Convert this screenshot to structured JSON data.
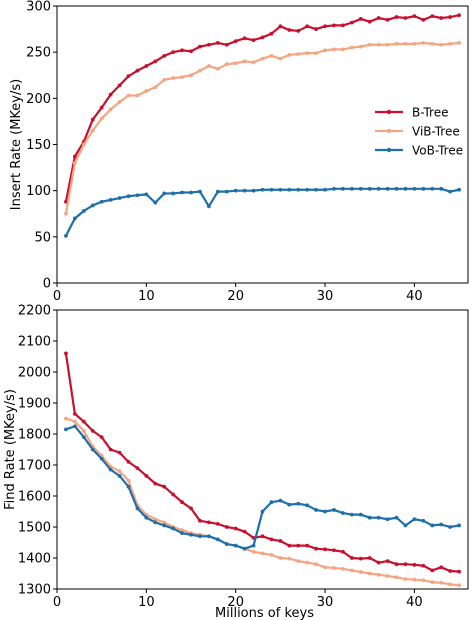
{
  "chart_data": [
    {
      "type": "line",
      "xlabel": "",
      "ylabel": "Insert Rate (MKey/s)",
      "xlim": [
        0,
        46
      ],
      "ylim": [
        0,
        300
      ],
      "xticks": [
        0,
        10,
        20,
        30,
        40
      ],
      "xtick_labels": [
        "0",
        "10",
        "20",
        "30",
        "40"
      ],
      "yticks": [
        0,
        50,
        100,
        150,
        200,
        250,
        300
      ],
      "ytick_labels": [
        "0",
        "50",
        "100",
        "150",
        "200",
        "250",
        "300"
      ],
      "legend": {
        "placement": "right"
      },
      "x": [
        1,
        2,
        3,
        4,
        5,
        6,
        7,
        8,
        9,
        10,
        11,
        12,
        13,
        14,
        15,
        16,
        17,
        18,
        19,
        20,
        21,
        22,
        23,
        24,
        25,
        26,
        27,
        28,
        29,
        30,
        31,
        32,
        33,
        34,
        35,
        36,
        37,
        38,
        39,
        40,
        41,
        42,
        43,
        44,
        45
      ],
      "series": [
        {
          "name": "B-Tree",
          "color": "#c8102e",
          "values": [
            88,
            137,
            153,
            177,
            190,
            204,
            214,
            224,
            230,
            235,
            240,
            246,
            250,
            252,
            251,
            256,
            258,
            260,
            258,
            262,
            265,
            263,
            266,
            270,
            278,
            274,
            273,
            278,
            275,
            278,
            279,
            279,
            282,
            286,
            283,
            287,
            285,
            288,
            287,
            289,
            285,
            289,
            287,
            288,
            290
          ]
        },
        {
          "name": "ViB-Tree",
          "color": "#f4a582",
          "values": [
            75,
            130,
            150,
            165,
            178,
            188,
            196,
            203,
            203,
            208,
            212,
            220,
            222,
            223,
            225,
            230,
            235,
            232,
            237,
            238,
            240,
            239,
            243,
            246,
            243,
            247,
            248,
            249,
            249,
            252,
            253,
            253,
            255,
            256,
            258,
            258,
            258,
            259,
            259,
            259,
            260,
            259,
            258,
            259,
            260
          ]
        },
        {
          "name": "VoB-Tree",
          "color": "#1f6fa8",
          "values": [
            51,
            70,
            78,
            84,
            88,
            90,
            92,
            94,
            95,
            96,
            87,
            97,
            97,
            98,
            98,
            99,
            83,
            99,
            99,
            100,
            100,
            100,
            101,
            101,
            101,
            101,
            101,
            101,
            101,
            101,
            102,
            102,
            102,
            102,
            102,
            102,
            102,
            102,
            102,
            102,
            102,
            102,
            102,
            99,
            101
          ]
        }
      ]
    },
    {
      "type": "line",
      "xlabel": "Millions of keys",
      "ylabel": "Find Rate (MKey/s)",
      "xlim": [
        0,
        46
      ],
      "ylim": [
        1300,
        2200
      ],
      "xticks": [
        0,
        10,
        20,
        30,
        40
      ],
      "xtick_labels": [
        "0",
        "10",
        "20",
        "30",
        "40"
      ],
      "yticks": [
        1300,
        1400,
        1500,
        1600,
        1700,
        1800,
        1900,
        2000,
        2100,
        2200
      ],
      "ytick_labels": [
        "1300",
        "1400",
        "1500",
        "1600",
        "1700",
        "1800",
        "1900",
        "2000",
        "2100",
        "2200"
      ],
      "x": [
        1,
        2,
        3,
        4,
        5,
        6,
        7,
        8,
        9,
        10,
        11,
        12,
        13,
        14,
        15,
        16,
        17,
        18,
        19,
        20,
        21,
        22,
        23,
        24,
        25,
        26,
        27,
        28,
        29,
        30,
        31,
        32,
        33,
        34,
        35,
        36,
        37,
        38,
        39,
        40,
        41,
        42,
        43,
        44,
        45
      ],
      "series": [
        {
          "name": "B-Tree",
          "color": "#c8102e",
          "values": [
            2060,
            1865,
            1840,
            1810,
            1790,
            1750,
            1740,
            1710,
            1690,
            1665,
            1640,
            1630,
            1605,
            1580,
            1560,
            1520,
            1515,
            1510,
            1500,
            1495,
            1485,
            1465,
            1470,
            1460,
            1455,
            1440,
            1440,
            1440,
            1430,
            1428,
            1425,
            1420,
            1400,
            1398,
            1400,
            1385,
            1390,
            1380,
            1380,
            1378,
            1375,
            1360,
            1370,
            1358,
            1356
          ]
        },
        {
          "name": "ViB-Tree",
          "color": "#f4a582",
          "values": [
            1850,
            1840,
            1810,
            1760,
            1730,
            1695,
            1680,
            1650,
            1570,
            1540,
            1525,
            1515,
            1500,
            1490,
            1480,
            1475,
            1470,
            1460,
            1445,
            1440,
            1430,
            1420,
            1415,
            1410,
            1400,
            1398,
            1390,
            1385,
            1380,
            1370,
            1368,
            1365,
            1360,
            1355,
            1350,
            1346,
            1342,
            1338,
            1332,
            1330,
            1328,
            1322,
            1320,
            1315,
            1312
          ]
        },
        {
          "name": "VoB-Tree",
          "color": "#1f6fa8",
          "values": [
            1815,
            1825,
            1790,
            1750,
            1720,
            1685,
            1665,
            1630,
            1560,
            1530,
            1515,
            1505,
            1495,
            1480,
            1475,
            1470,
            1470,
            1460,
            1445,
            1440,
            1430,
            1440,
            1550,
            1580,
            1585,
            1572,
            1575,
            1570,
            1555,
            1550,
            1555,
            1545,
            1540,
            1540,
            1530,
            1530,
            1525,
            1530,
            1505,
            1525,
            1520,
            1505,
            1508,
            1500,
            1505
          ]
        }
      ]
    }
  ]
}
